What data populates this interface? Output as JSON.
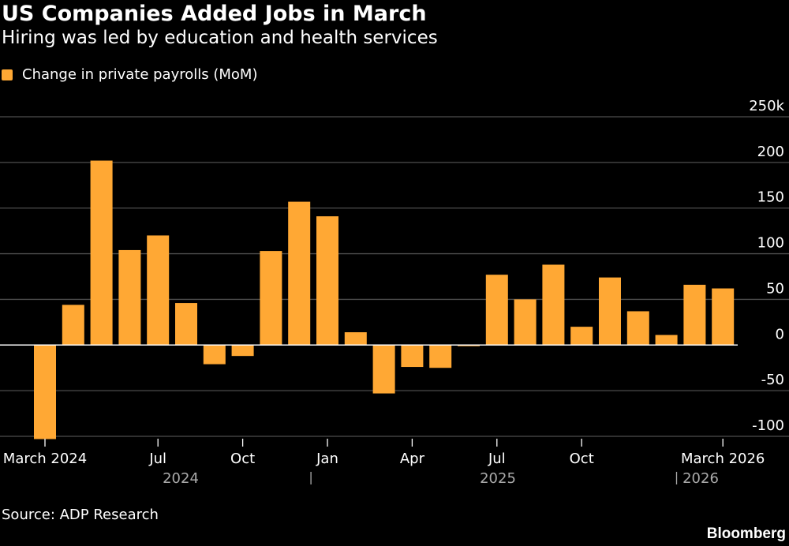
{
  "title": "US Companies Added Jobs in March",
  "subtitle": "Hiring was led by education and health services",
  "source": "Source: ADP Research",
  "brand": "Bloomberg",
  "colors": {
    "bar": "#ffa834",
    "grid": "#4d4d4d",
    "zero": "#ffffff",
    "year_label": "#aaaaaa"
  },
  "chart_data": {
    "type": "bar",
    "title": "US Companies Added Jobs in March",
    "subtitle": "Hiring was led by education and health services",
    "y_unit": "k",
    "ylim": [
      -100,
      250
    ],
    "y_ticks": [
      -100,
      -50,
      0,
      50,
      100,
      150,
      200,
      250
    ],
    "y_tick_labels": [
      "-100",
      "-50",
      "0",
      "50",
      "100",
      "150",
      "200",
      "250k"
    ],
    "grid": true,
    "legend_position": "top-left",
    "categories": [
      "Mar 2024",
      "Apr 2024",
      "May 2024",
      "Jun 2024",
      "Jul 2024",
      "Aug 2024",
      "Sep 2024",
      "Oct 2024",
      "Nov 2024",
      "Dec 2024",
      "Jan 2025",
      "Feb 2025",
      "Mar 2025",
      "Apr 2025",
      "May 2025",
      "Jun 2025",
      "Jul 2025",
      "Aug 2025",
      "Sep 2025",
      "Oct 2025",
      "Nov 2025",
      "Dec 2025",
      "Jan 2026",
      "Feb 2026",
      "Mar 2026"
    ],
    "series": [
      {
        "name": "Change in private payrolls (MoM)",
        "values": [
          -103,
          44,
          202,
          104,
          120,
          46,
          -21,
          -12,
          103,
          157,
          141,
          14,
          -53,
          -24,
          -25,
          -1,
          77,
          50,
          88,
          20,
          74,
          37,
          11,
          66,
          62
        ]
      }
    ],
    "x_tick_labels": [
      {
        "index": 0,
        "label": "March 2024"
      },
      {
        "index": 4,
        "label": "Jul"
      },
      {
        "index": 7,
        "label": "Oct"
      },
      {
        "index": 10,
        "label": "Jan"
      },
      {
        "index": 13,
        "label": "Apr"
      },
      {
        "index": 16,
        "label": "Jul"
      },
      {
        "index": 19,
        "label": "Oct"
      },
      {
        "index": 24,
        "label": "March 2026"
      }
    ],
    "year_labels": [
      "2024",
      "2025",
      "2026"
    ]
  }
}
